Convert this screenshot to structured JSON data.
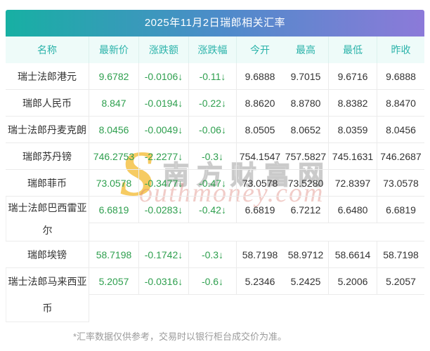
{
  "title": "2025年11月2日瑞郎相关汇率",
  "columns": [
    "名称",
    "最新价",
    "涨跌额",
    "涨跌幅",
    "今开",
    "最高",
    "最低",
    "昨收"
  ],
  "rows": [
    {
      "name": "瑞士法郎港元",
      "latest": "9.6782",
      "change": "-0.0106↓",
      "pct": "-0.11↓",
      "open": "9.6888",
      "high": "9.7015",
      "low": "9.6716",
      "prev": "9.6888"
    },
    {
      "name": "瑞郎人民币",
      "latest": "8.847",
      "change": "-0.0194↓",
      "pct": "-0.22↓",
      "open": "8.8620",
      "high": "8.8780",
      "low": "8.8382",
      "prev": "8.8470"
    },
    {
      "name": "瑞士法郎丹麦克朗",
      "latest": "8.0456",
      "change": "-0.0049↓",
      "pct": "-0.06↓",
      "open": "8.0505",
      "high": "8.0652",
      "low": "8.0359",
      "prev": "8.0456"
    },
    {
      "name": "瑞郎苏丹镑",
      "latest": "746.2753",
      "change": "-2.2277↓",
      "pct": "-0.3↓",
      "open": "754.1547",
      "high": "757.5827",
      "low": "745.1631",
      "prev": "746.2687"
    },
    {
      "name": "瑞郎菲币",
      "latest": "73.0578",
      "change": "-0.3477↓",
      "pct": "-0.47↓",
      "open": "73.0578",
      "high": "73.5280",
      "low": "72.8397",
      "prev": "73.0578"
    },
    {
      "name": "瑞士法郎巴西雷亚尔",
      "name_wrap": [
        "瑞士法郎巴西雷亚",
        "尔"
      ],
      "latest": "6.6819",
      "change": "-0.0283↓",
      "pct": "-0.42↓",
      "open": "6.6819",
      "high": "6.7212",
      "low": "6.6480",
      "prev": "6.6819"
    },
    {
      "name": "瑞郎埃镑",
      "latest": "58.7198",
      "change": "-0.1742↓",
      "pct": "-0.3↓",
      "open": "58.7198",
      "high": "58.9712",
      "low": "58.6614",
      "prev": "58.7198"
    },
    {
      "name": "瑞士法郎马来西亚币",
      "name_wrap": [
        "瑞士法郎马来西亚",
        "币"
      ],
      "latest": "5.2057",
      "change": "-0.0316↓",
      "pct": "-0.6↓",
      "open": "5.2346",
      "high": "5.2425",
      "low": "5.2006",
      "prev": "5.2057"
    }
  ],
  "footer": "*汇率数据仅供参考，交易时以银行柜台成交价为准。",
  "watermark": {
    "logo_s": "S",
    "cn": "南方财富网",
    "en": "outhmoney.com"
  },
  "colors": {
    "gradient_left": "#17b0a3",
    "gradient_mid": "#4e8bca",
    "gradient_right": "#8c7ad9",
    "header_bg": "#eefbf9",
    "header_text": "#2bb3aa",
    "value_green": "#2e9f4e",
    "text_dark": "#333333",
    "border": "#ebebeb",
    "footer_gray": "#9b9b9b",
    "watermark_yellow": "#f0b428",
    "watermark_pink": "#d98d85"
  }
}
